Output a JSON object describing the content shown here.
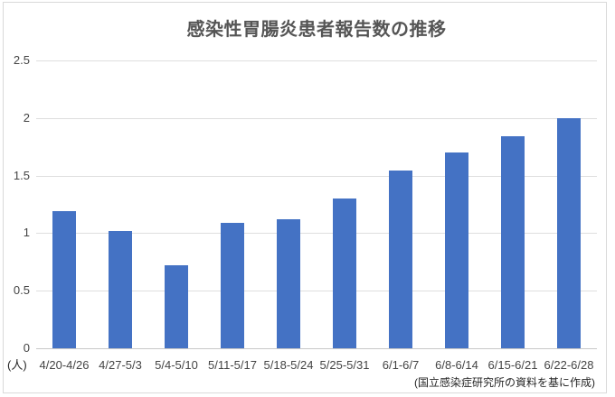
{
  "header": {
    "title": "感染性胃腸炎患者報告数の推移"
  },
  "axes": {
    "y_unit_label": "(人)"
  },
  "footer": {
    "source_note": "(国立感染症研究所の資料を基に作成)"
  },
  "colors": {
    "bar": "#4472C4",
    "grid": "#dedede",
    "axis_line": "#c8c8c8",
    "title_text": "#555555",
    "tick_text": "#444444",
    "source_text": "#262626",
    "frame_border": "#d9d9d9"
  },
  "chart_data": {
    "type": "bar",
    "title": "感染性胃腸炎患者報告数の推移",
    "categories": [
      "4/20-4/26",
      "4/27-5/3",
      "5/4-5/10",
      "5/11-5/17",
      "5/18-5/24",
      "5/25-5/31",
      "6/1-6/7",
      "6/8-6/14",
      "6/15-6/21",
      "6/22-6/28"
    ],
    "values": [
      1.19,
      1.02,
      0.72,
      1.09,
      1.12,
      1.3,
      1.54,
      1.7,
      1.84,
      2.0
    ],
    "xlabel": "",
    "ylabel": "(人)",
    "ylim": [
      0,
      2.5
    ],
    "yticks": [
      0,
      0.5,
      1,
      1.5,
      2,
      2.5
    ],
    "ytick_labels": [
      "0",
      "0.5",
      "1",
      "1.5",
      "2",
      "2.5"
    ],
    "grid": true,
    "legend": false,
    "bar_color": "#4472C4",
    "source_note": "(国立感染症研究所の資料を基に作成)"
  }
}
